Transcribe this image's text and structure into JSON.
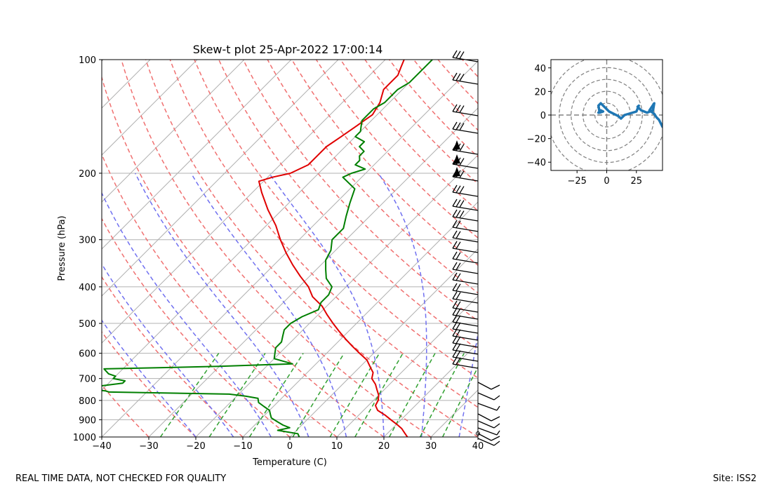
{
  "title": "Skew-t plot 25-Apr-2022 17:00:14",
  "footer": {
    "left": "REAL TIME DATA, NOT CHECKED FOR QUALITY",
    "right": "Site: ISS2"
  },
  "chart_data": [
    {
      "type": "skew-t",
      "title": "Skew-t plot 25-Apr-2022 17:00:14",
      "xlabel": "Temperature (C)",
      "ylabel": "Pressure (hPa)",
      "xlim": [
        -40,
        40
      ],
      "ylim": [
        1000,
        100
      ],
      "log_y": true,
      "grid": true,
      "x_ticks": [
        -40,
        -30,
        -20,
        -10,
        0,
        10,
        20,
        30,
        40
      ],
      "y_ticks": [
        100,
        200,
        300,
        400,
        500,
        600,
        700,
        800,
        900,
        1000
      ],
      "temperature": {
        "color": "#e00000",
        "p": [
          1000,
          975,
          950,
          925,
          900,
          875,
          850,
          825,
          800,
          775,
          750,
          725,
          700,
          675,
          650,
          625,
          600,
          575,
          550,
          525,
          500,
          475,
          450,
          425,
          400,
          375,
          350,
          325,
          300,
          275,
          250,
          225,
          210,
          205,
          200,
          190,
          180,
          170,
          160,
          150,
          140,
          130,
          120,
          115,
          110,
          105,
          100
        ],
        "t": [
          25,
          23.5,
          22,
          20,
          17.8,
          15.6,
          13,
          11.5,
          11,
          10,
          8.5,
          7,
          5,
          4,
          2,
          0,
          -3,
          -6,
          -9,
          -12,
          -15,
          -18,
          -21,
          -25,
          -28,
          -32,
          -36,
          -40,
          -44,
          -48,
          -53,
          -58,
          -61,
          -59,
          -56,
          -54,
          -54,
          -54,
          -53,
          -52,
          -51,
          -52,
          -54,
          -54,
          -54,
          -55,
          -56
        ]
      },
      "dewpoint": {
        "color": "#007f00",
        "p": [
          1000,
          980,
          960,
          945,
          930,
          910,
          890,
          870,
          850,
          830,
          810,
          790,
          780,
          770,
          760,
          755,
          745,
          735,
          720,
          710,
          700,
          690,
          680,
          670,
          660,
          650,
          640,
          620,
          600,
          580,
          560,
          540,
          520,
          500,
          480,
          460,
          440,
          420,
          400,
          380,
          360,
          340,
          320,
          300,
          280,
          260,
          240,
          220,
          205,
          200,
          195,
          190,
          185,
          180,
          175,
          170,
          165,
          160,
          155,
          150,
          145,
          140,
          135,
          130,
          125,
          120,
          115,
          110,
          105,
          100
        ],
        "t": [
          2,
          1,
          -4,
          -2,
          -4,
          -6,
          -8,
          -9,
          -10,
          -12,
          -14,
          -15,
          -18,
          -22,
          -48,
          -49,
          -54,
          -52,
          -47,
          -47,
          -50,
          -50,
          -52,
          -53,
          -54,
          -30,
          -15,
          -20,
          -21,
          -22,
          -22,
          -23,
          -24,
          -24,
          -23,
          -21,
          -22,
          -22,
          -23,
          -26,
          -28,
          -30,
          -31,
          -33,
          -33,
          -35,
          -37,
          -39,
          -44,
          -43,
          -41,
          -44,
          -44,
          -45,
          -45,
          -47,
          -47,
          -50,
          -50,
          -51,
          -52,
          -52,
          -52,
          -51,
          -51,
          -51,
          -50,
          -50,
          -50,
          -50
        ]
      },
      "wind_barbs_note": "wind barbs shown on right edge of skew-t panel"
    },
    {
      "type": "hodograph",
      "xlim": [
        -47,
        47
      ],
      "ylim": [
        -47,
        47
      ],
      "x_ticks": [
        -25,
        0,
        25
      ],
      "y_ticks": [
        40,
        20,
        0,
        -20,
        -40
      ],
      "rings": [
        10,
        20,
        30,
        40,
        50
      ],
      "series": [
        {
          "color": "#1f77b4",
          "u": [
            -7,
            -5,
            -3,
            -6,
            -7,
            -5,
            2,
            6,
            10,
            12,
            15,
            25,
            27,
            26,
            29,
            34,
            39,
            40,
            36,
            40,
            42,
            44,
            45,
            47
          ],
          "v": [
            2,
            4,
            3,
            2,
            8,
            10,
            3,
            1,
            -1,
            -3,
            0,
            3,
            8,
            7,
            4,
            2,
            4,
            10,
            4,
            1,
            -2,
            -4,
            -6,
            -10
          ]
        }
      ]
    }
  ]
}
